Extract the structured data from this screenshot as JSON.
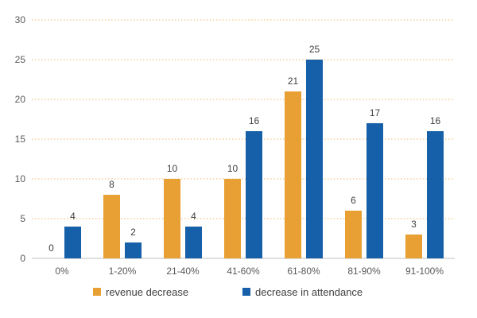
{
  "chart_data": {
    "type": "bar",
    "title": "",
    "xlabel": "",
    "ylabel": "",
    "categories": [
      "0%",
      "1-20%",
      "21-40%",
      "41-60%",
      "61-80%",
      "81-90%",
      "91-100%"
    ],
    "series": [
      {
        "name": "revenue decrease",
        "color": "#E89F33",
        "values": [
          0,
          8,
          10,
          10,
          21,
          6,
          3
        ]
      },
      {
        "name": "decrease in attendance",
        "color": "#1560A8",
        "values": [
          4,
          2,
          4,
          16,
          25,
          17,
          16
        ]
      }
    ],
    "ylim": [
      0,
      30
    ],
    "yticks": [
      0,
      5,
      10,
      15,
      20,
      25,
      30
    ],
    "grid": true,
    "legend_position": "bottom"
  }
}
